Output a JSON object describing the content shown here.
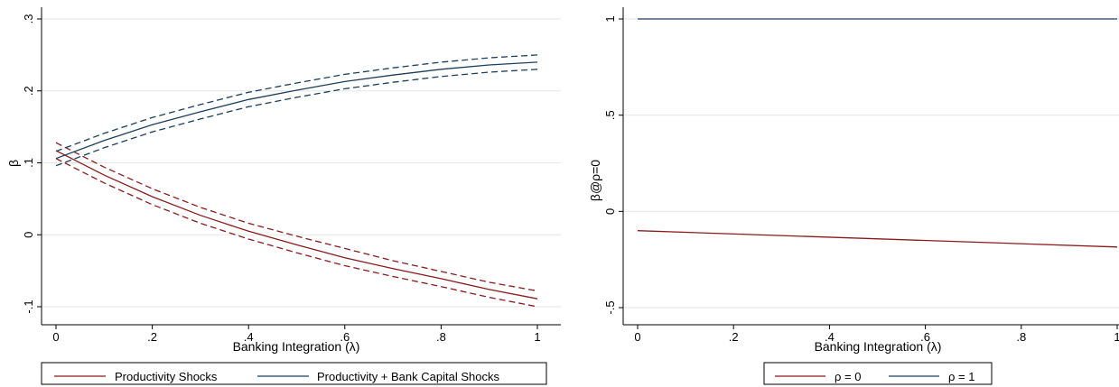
{
  "colors": {
    "red": "#8b1a1a",
    "blue": "#1b3f5e",
    "grid": "#e6e6e6",
    "axis": "#000000"
  },
  "chart_data": [
    {
      "type": "line",
      "xlabel": "Banking Integration (λ)",
      "ylabel": "β",
      "xlim": [
        0,
        1
      ],
      "ylim": [
        -0.1,
        0.3
      ],
      "xticks": [
        0,
        0.2,
        0.4,
        0.6,
        0.8,
        1
      ],
      "xtick_labels": [
        "0",
        ".2",
        ".4",
        ".6",
        ".8",
        "1"
      ],
      "yticks": [
        -0.1,
        0,
        0.1,
        0.2,
        0.3
      ],
      "ytick_labels": [
        "-.1",
        "0",
        ".1",
        ".2",
        ".3"
      ],
      "grid": true,
      "legend_position": "bottom",
      "x": [
        0,
        0.1,
        0.2,
        0.3,
        0.4,
        0.5,
        0.6,
        0.7,
        0.8,
        0.9,
        1.0
      ],
      "series": [
        {
          "name": "Productivity Shocks",
          "color": "#8b1a1a",
          "style": "solid",
          "values": [
            0.117,
            0.083,
            0.053,
            0.027,
            0.005,
            -0.014,
            -0.032,
            -0.047,
            -0.061,
            -0.076,
            -0.089
          ]
        },
        {
          "name": "",
          "color": "#8b1a1a",
          "style": "dashed",
          "values": [
            0.128,
            0.094,
            0.064,
            0.038,
            0.016,
            -0.002,
            -0.019,
            -0.036,
            -0.051,
            -0.066,
            -0.078
          ]
        },
        {
          "name": "",
          "color": "#8b1a1a",
          "style": "dashed",
          "values": [
            0.106,
            0.072,
            0.042,
            0.016,
            -0.006,
            -0.025,
            -0.043,
            -0.058,
            -0.072,
            -0.087,
            -0.1
          ]
        },
        {
          "name": "Productivity + Bank Capital Shocks",
          "color": "#1b3f5e",
          "style": "solid",
          "values": [
            0.106,
            0.131,
            0.153,
            0.171,
            0.188,
            0.201,
            0.213,
            0.222,
            0.23,
            0.236,
            0.24
          ]
        },
        {
          "name": "",
          "color": "#1b3f5e",
          "style": "dashed",
          "values": [
            0.116,
            0.141,
            0.163,
            0.181,
            0.198,
            0.211,
            0.223,
            0.232,
            0.24,
            0.246,
            0.25
          ]
        },
        {
          "name": "",
          "color": "#1b3f5e",
          "style": "dashed",
          "values": [
            0.096,
            0.121,
            0.143,
            0.161,
            0.178,
            0.191,
            0.203,
            0.212,
            0.22,
            0.226,
            0.23
          ]
        }
      ]
    },
    {
      "type": "line",
      "xlabel": "Banking Integration (λ)",
      "ylabel": "β@ρ=0",
      "xlim": [
        0,
        1
      ],
      "ylim": [
        -0.5,
        1
      ],
      "xticks": [
        0,
        0.2,
        0.4,
        0.6,
        0.8,
        1
      ],
      "xtick_labels": [
        "0",
        ".2",
        ".4",
        ".6",
        ".8",
        "1"
      ],
      "yticks": [
        -0.5,
        0,
        0.5,
        1
      ],
      "ytick_labels": [
        "-.5",
        "0",
        ".5",
        "1"
      ],
      "grid": true,
      "legend_position": "bottom",
      "x": [
        0,
        1
      ],
      "series": [
        {
          "name": "ρ = 0",
          "color": "#8b1a1a",
          "style": "solid",
          "values": [
            -0.1,
            -0.185
          ]
        },
        {
          "name": "ρ = 1",
          "color": "#1b3f5e",
          "style": "solid",
          "values": [
            1.0,
            1.0
          ]
        }
      ]
    }
  ]
}
